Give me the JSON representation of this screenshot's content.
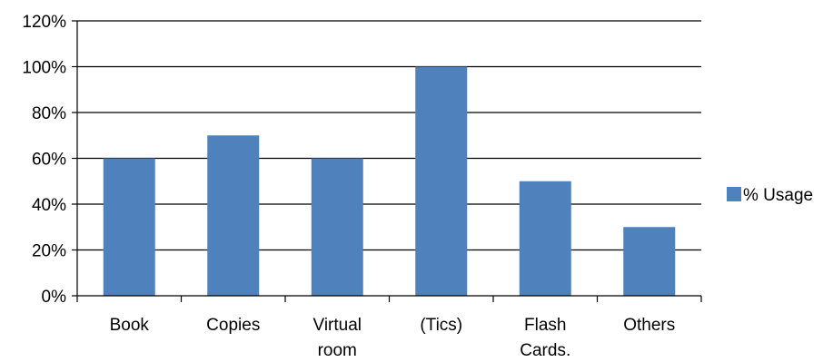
{
  "chart_data": {
    "type": "bar",
    "categories": [
      [
        "Book"
      ],
      [
        "Copies"
      ],
      [
        "Virtual",
        "room"
      ],
      [
        "(Tics)"
      ],
      [
        "Flash",
        "Cards."
      ],
      [
        "Others"
      ]
    ],
    "series": [
      {
        "name": "% Usage",
        "values": [
          60,
          70,
          60,
          100,
          50,
          30
        ],
        "color": "#4F81BD"
      }
    ],
    "yticks": [
      "0%",
      "20%",
      "40%",
      "60%",
      "80%",
      "100%",
      "120%"
    ],
    "ylim": [
      0,
      120
    ],
    "grid": true,
    "legend_position": "right"
  }
}
